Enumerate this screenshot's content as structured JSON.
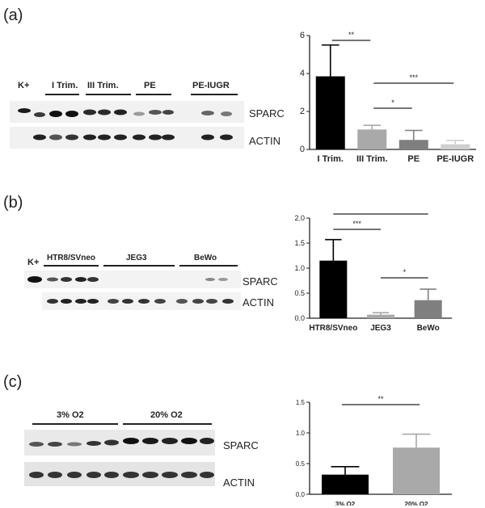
{
  "panels": [
    {
      "label": "(a)",
      "blot": {
        "ladder": "K+",
        "groups": [
          "I Trim.",
          "III Trim.",
          "PE",
          "PE-IUGR"
        ],
        "rows": [
          "SPARC",
          "ACTIN"
        ]
      },
      "chart_data": {
        "type": "bar",
        "categories": [
          "I Trim.",
          "III Trim.",
          "PE",
          "PE-IUGR"
        ],
        "values": [
          3.85,
          1.05,
          0.5,
          0.27
        ],
        "errors": [
          1.65,
          0.22,
          0.5,
          0.2
        ],
        "colors": [
          "#000000",
          "#a9a9a9",
          "#7f7f7f",
          "#cfcfcf"
        ],
        "ylim": [
          0,
          6
        ],
        "yticks": [
          "0",
          "2",
          "4",
          "6"
        ],
        "significance": [
          {
            "from": 0,
            "to": 1,
            "label": "**"
          },
          {
            "from": 1,
            "to": 2,
            "label": "*"
          },
          {
            "from": 1,
            "to": 3,
            "label": "***"
          }
        ]
      }
    },
    {
      "label": "(b)",
      "blot": {
        "ladder": "K+",
        "groups": [
          "HTR8/SVneo",
          "JEG3",
          "BeWo"
        ],
        "rows": [
          "SPARC",
          "ACTIN"
        ]
      },
      "chart_data": {
        "type": "bar",
        "categories": [
          "HTR8/SVneo",
          "JEG3",
          "BeWo"
        ],
        "values": [
          1.15,
          0.07,
          0.36
        ],
        "errors": [
          0.42,
          0.04,
          0.22
        ],
        "colors": [
          "#000000",
          "#a9a9a9",
          "#7f7f7f"
        ],
        "ylim": [
          0,
          2
        ],
        "yticks": [
          "0.0",
          "0.5",
          "1.0",
          "1.5",
          "2.0"
        ],
        "significance": [
          {
            "from": 0,
            "to": 1,
            "label": "***"
          },
          {
            "from": 0,
            "to": 2,
            "label": "*"
          },
          {
            "from": 1,
            "to": 2,
            "label": "*"
          }
        ]
      }
    },
    {
      "label": "(c)",
      "blot": {
        "ladder": "",
        "groups": [
          "3% O2",
          "20% O2"
        ],
        "rows": [
          "SPARC",
          "ACTIN"
        ]
      },
      "chart_data": {
        "type": "bar",
        "categories": [
          "3% O2",
          "20% O2"
        ],
        "values": [
          0.32,
          0.76
        ],
        "errors": [
          0.13,
          0.22
        ],
        "colors": [
          "#000000",
          "#a9a9a9"
        ],
        "ylim": [
          0,
          1.5
        ],
        "yticks": [
          "0.0",
          "0.5",
          "1.0",
          "1.5"
        ],
        "significance": [
          {
            "from": 0,
            "to": 1,
            "label": "**"
          }
        ]
      }
    }
  ]
}
